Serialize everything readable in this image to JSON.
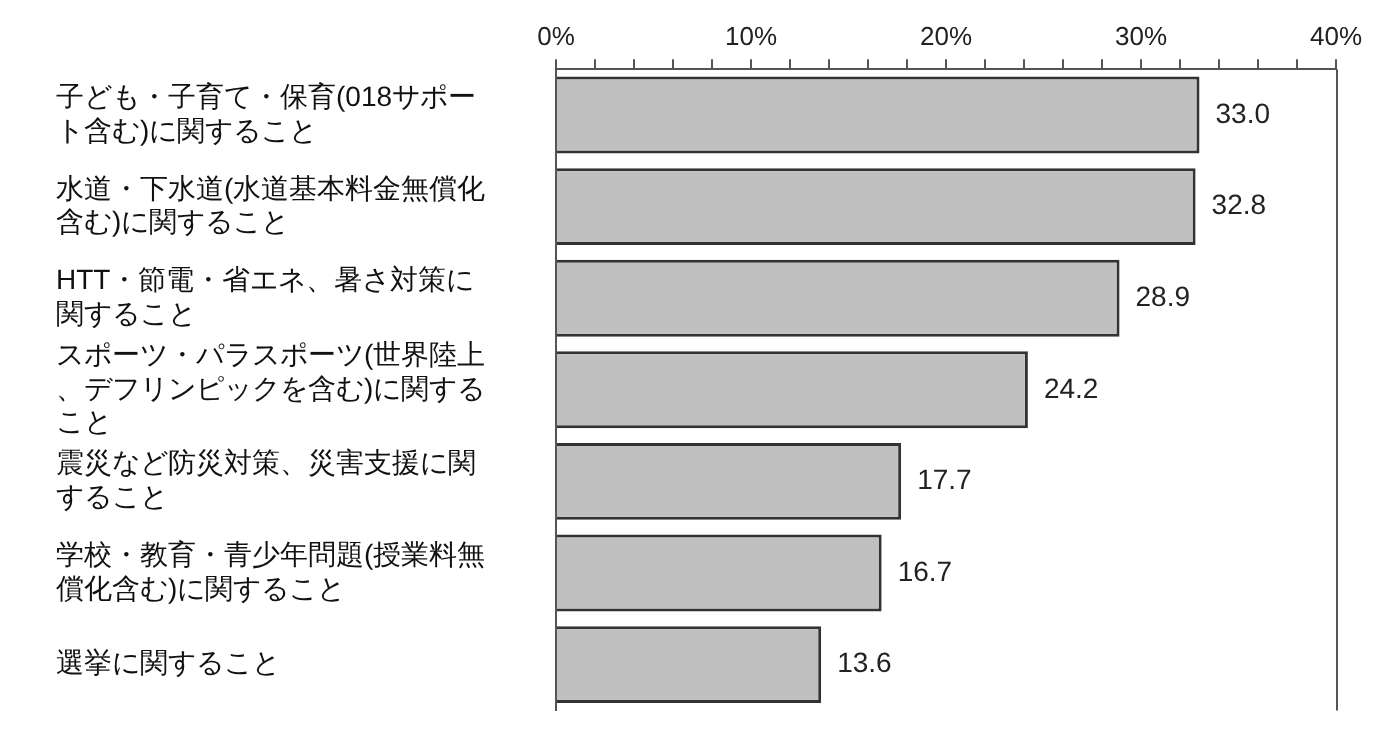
{
  "chart_data": {
    "type": "bar",
    "orientation": "horizontal",
    "categories": [
      "子ども・子育て・保育(018サポート含む)に関すること",
      "水道・下水道(水道基本料金無償化含む)に関すること",
      "HTT・節電・省エネ、暑さ対策に関すること",
      "スポーツ・パラスポーツ(世界陸上、デフリンピックを含む)に関すること",
      "震災など防災対策、災害支援に関すること",
      "学校・教育・青少年問題(授業料無償化含む)に関すること",
      "選挙に関すること"
    ],
    "values": [
      33.0,
      32.8,
      28.9,
      24.2,
      17.7,
      16.7,
      13.6
    ],
    "value_labels": [
      "33.0",
      "32.8",
      "28.9",
      "24.2",
      "17.7",
      "16.7",
      "13.6"
    ],
    "color": "#c0c0c0",
    "xlim": [
      0,
      40
    ],
    "xticks": [
      {
        "value": 0,
        "label": "0%"
      },
      {
        "value": 2,
        "label": null
      },
      {
        "value": 4,
        "label": null
      },
      {
        "value": 6,
        "label": null
      },
      {
        "value": 8,
        "label": null
      },
      {
        "value": 10,
        "label": "10%"
      },
      {
        "value": 12,
        "label": null
      },
      {
        "value": 14,
        "label": null
      },
      {
        "value": 16,
        "label": null
      },
      {
        "value": 18,
        "label": null
      },
      {
        "value": 20,
        "label": "20%"
      },
      {
        "value": 22,
        "label": null
      },
      {
        "value": 24,
        "label": null
      },
      {
        "value": 26,
        "label": null
      },
      {
        "value": 28,
        "label": null
      },
      {
        "value": 30,
        "label": "30%"
      },
      {
        "value": 32,
        "label": null
      },
      {
        "value": 34,
        "label": null
      },
      {
        "value": 36,
        "label": null
      },
      {
        "value": 38,
        "label": null
      },
      {
        "value": 40,
        "label": "40%"
      }
    ],
    "grid": false,
    "legend": false
  }
}
